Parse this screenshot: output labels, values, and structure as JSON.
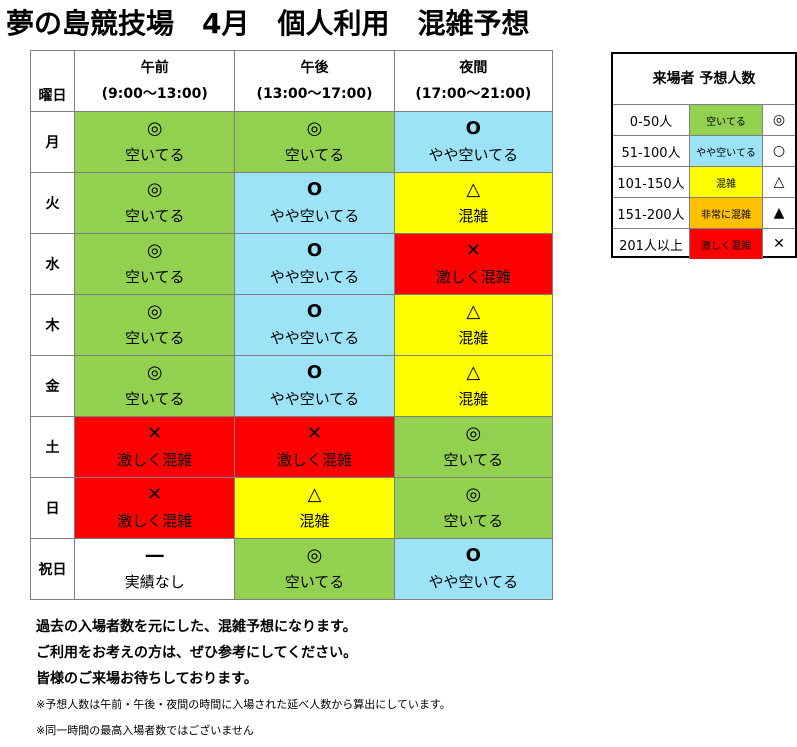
{
  "title": "夢の島競技場　4月　個人利用　混雑予想",
  "table": {
    "day_header": "曜日",
    "columns": [
      {
        "name": "午前",
        "time": "(9:00～13:00)"
      },
      {
        "name": "午後",
        "time": "(13:00～17:00)"
      },
      {
        "name": "夜間",
        "time": "(17:00～21:00)"
      }
    ],
    "rows": [
      {
        "day": "月",
        "cells": [
          {
            "symbol": "◎",
            "label": "空いてる",
            "level": "empty"
          },
          {
            "symbol": "◎",
            "label": "空いてる",
            "level": "empty"
          },
          {
            "symbol": "O",
            "label": "やや空いてる",
            "level": "some"
          }
        ]
      },
      {
        "day": "火",
        "cells": [
          {
            "symbol": "◎",
            "label": "空いてる",
            "level": "empty"
          },
          {
            "symbol": "O",
            "label": "やや空いてる",
            "level": "some"
          },
          {
            "symbol": "△",
            "label": "混雑",
            "level": "crowd"
          }
        ]
      },
      {
        "day": "水",
        "cells": [
          {
            "symbol": "◎",
            "label": "空いてる",
            "level": "empty"
          },
          {
            "symbol": "O",
            "label": "やや空いてる",
            "level": "some"
          },
          {
            "symbol": "✕",
            "label": "激しく混雑",
            "level": "very"
          }
        ]
      },
      {
        "day": "木",
        "cells": [
          {
            "symbol": "◎",
            "label": "空いてる",
            "level": "empty"
          },
          {
            "symbol": "O",
            "label": "やや空いてる",
            "level": "some"
          },
          {
            "symbol": "△",
            "label": "混雑",
            "level": "crowd"
          }
        ]
      },
      {
        "day": "金",
        "cells": [
          {
            "symbol": "◎",
            "label": "空いてる",
            "level": "empty"
          },
          {
            "symbol": "O",
            "label": "やや空いてる",
            "level": "some"
          },
          {
            "symbol": "△",
            "label": "混雑",
            "level": "crowd"
          }
        ]
      },
      {
        "day": "土",
        "cells": [
          {
            "symbol": "✕",
            "label": "激しく混雑",
            "level": "very"
          },
          {
            "symbol": "✕",
            "label": "激しく混雑",
            "level": "very"
          },
          {
            "symbol": "◎",
            "label": "空いてる",
            "level": "empty"
          }
        ]
      },
      {
        "day": "日",
        "cells": [
          {
            "symbol": "✕",
            "label": "激しく混雑",
            "level": "very"
          },
          {
            "symbol": "△",
            "label": "混雑",
            "level": "crowd"
          },
          {
            "symbol": "◎",
            "label": "空いてる",
            "level": "empty"
          }
        ]
      },
      {
        "day": "祝日",
        "cells": [
          {
            "symbol": "―",
            "label": "実績なし",
            "level": "none"
          },
          {
            "symbol": "◎",
            "label": "空いてる",
            "level": "empty"
          },
          {
            "symbol": "O",
            "label": "やや空いてる",
            "level": "some"
          }
        ]
      }
    ]
  },
  "legend": {
    "title": "来場者 予想人数",
    "items": [
      {
        "range": "0-50人",
        "label": "空いてる",
        "symbol": "◎",
        "level": "empty"
      },
      {
        "range": "51-100人",
        "label": "やや空いてる",
        "symbol": "○",
        "level": "some"
      },
      {
        "range": "101-150人",
        "label": "混雑",
        "symbol": "△",
        "level": "crowd"
      },
      {
        "range": "151-200人",
        "label": "非常に混雑",
        "symbol": "▲",
        "level": "high"
      },
      {
        "range": "201人以上",
        "label": "激しく混雑",
        "symbol": "✕",
        "level": "very"
      }
    ]
  },
  "colors": {
    "empty": "#92d050",
    "some": "#9de3f8",
    "crowd": "#ffff00",
    "high": "#ffc000",
    "very": "#ff0000",
    "none": "#ffffff"
  },
  "notes": {
    "line1": "過去の入場者数を元にした、混雑予想になります。",
    "line2": "ご利用をお考えの方は、ぜひ参考にしてください。",
    "line3": "皆様のご来場お待ちしております。",
    "small1": "※予想人数は午前・午後・夜間の時間に入場された延べ人数から算出にしています。",
    "small2": "※同一時間の最高入場者数ではございません"
  }
}
